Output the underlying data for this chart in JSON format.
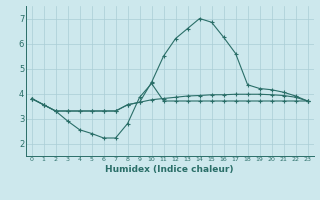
{
  "xlabel": "Humidex (Indice chaleur)",
  "xlim": [
    -0.5,
    23.5
  ],
  "ylim": [
    1.5,
    7.5
  ],
  "xticks": [
    0,
    1,
    2,
    3,
    4,
    5,
    6,
    7,
    8,
    9,
    10,
    11,
    12,
    13,
    14,
    15,
    16,
    17,
    18,
    19,
    20,
    21,
    22,
    23
  ],
  "yticks": [
    2,
    3,
    4,
    5,
    6,
    7
  ],
  "background_color": "#cde8ed",
  "grid_color": "#aacdd5",
  "line_color": "#2a6e68",
  "line1_y": [
    3.8,
    3.55,
    3.3,
    3.3,
    3.3,
    3.3,
    3.3,
    3.3,
    3.55,
    3.65,
    3.75,
    3.8,
    3.85,
    3.9,
    3.92,
    3.95,
    3.95,
    3.97,
    3.97,
    3.97,
    3.95,
    3.92,
    3.85,
    3.7
  ],
  "line2_y": [
    3.8,
    3.55,
    3.3,
    3.3,
    3.3,
    3.3,
    3.3,
    3.3,
    3.55,
    3.65,
    4.45,
    5.5,
    6.2,
    6.6,
    7.0,
    6.85,
    6.25,
    5.6,
    4.35,
    4.2,
    4.15,
    4.05,
    3.9,
    3.7
  ],
  "line3_y": [
    3.8,
    3.55,
    3.3,
    2.9,
    2.55,
    2.4,
    2.22,
    2.22,
    2.8,
    3.85,
    4.4,
    3.7,
    3.7,
    3.7,
    3.7,
    3.7,
    3.7,
    3.7,
    3.7,
    3.7,
    3.7,
    3.7,
    3.7,
    3.7
  ]
}
